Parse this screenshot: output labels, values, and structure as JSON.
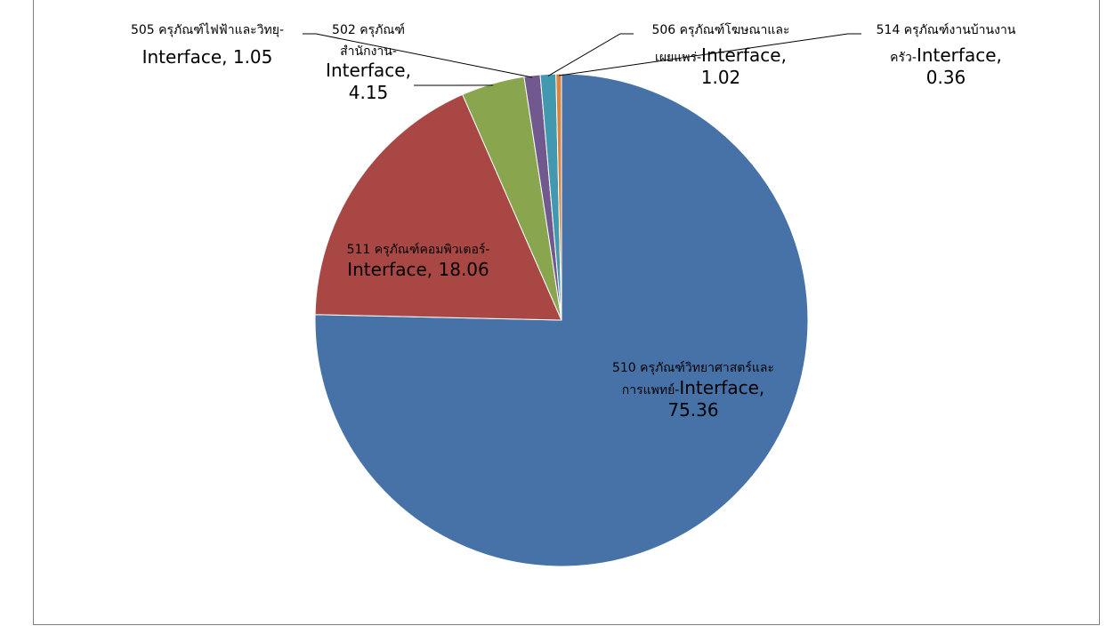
{
  "chart_data": {
    "type": "pie",
    "title": "",
    "start_angle_deg": 0,
    "direction": "clockwise",
    "slices": [
      {
        "category": "510 ครุภัณฑ์วิทยาศาสตร์และการแพทย์",
        "series": "Interface",
        "value": 75.36,
        "color": "#4672a8",
        "label": {
          "line1": "510 ครุภัณฑ์วิทยาศาสตร์และ",
          "line2_cat": "การแพทย์-",
          "line2_val": "Interface,",
          "line3": "75.36"
        }
      },
      {
        "category": "511 ครุภัณฑ์คอมพิวเตอร์",
        "series": "Interface",
        "value": 18.06,
        "color": "#a84744",
        "label": {
          "line1": "511 ครุภัณฑ์คอมพิวเตอร์-",
          "line2": "Interface,  18.06"
        }
      },
      {
        "category": "502 ครุภัณฑ์สำนักงาน",
        "series": "Interface",
        "value": 4.15,
        "color": "#89a54e",
        "label": {
          "line1": "502 ครุภัณฑ์",
          "line2": "สำนักงาน-",
          "line3": "Interface,",
          "line4": "4.15"
        }
      },
      {
        "category": "505 ครุภัณฑ์ไฟฟ้าและวิทยุ",
        "series": "Interface",
        "value": 1.05,
        "color": "#71588f",
        "label": {
          "line1": "505 ครุภัณฑ์ไฟฟ้าและวิทยุ-",
          "line2": "Interface,  1.05"
        }
      },
      {
        "category": "506 ครุภัณฑ์โฆษณาและเผยแพร่",
        "series": "Interface",
        "value": 1.02,
        "color": "#4198af",
        "label": {
          "line1": "506 ครุภัณฑ์โฆษณาและ",
          "line2_cat": "เผยแพร่-",
          "line2_val": "Interface,",
          "line3": "1.02"
        }
      },
      {
        "category": "514 ครุภัณฑ์งานบ้านงานครัว",
        "series": "Interface",
        "value": 0.36,
        "color": "#db843d",
        "label": {
          "line1": "514 ครุภัณฑ์งานบ้านงาน",
          "line2_cat": "ครัว-",
          "line2_val": "Interface,",
          "line3": "0.36"
        }
      }
    ]
  }
}
